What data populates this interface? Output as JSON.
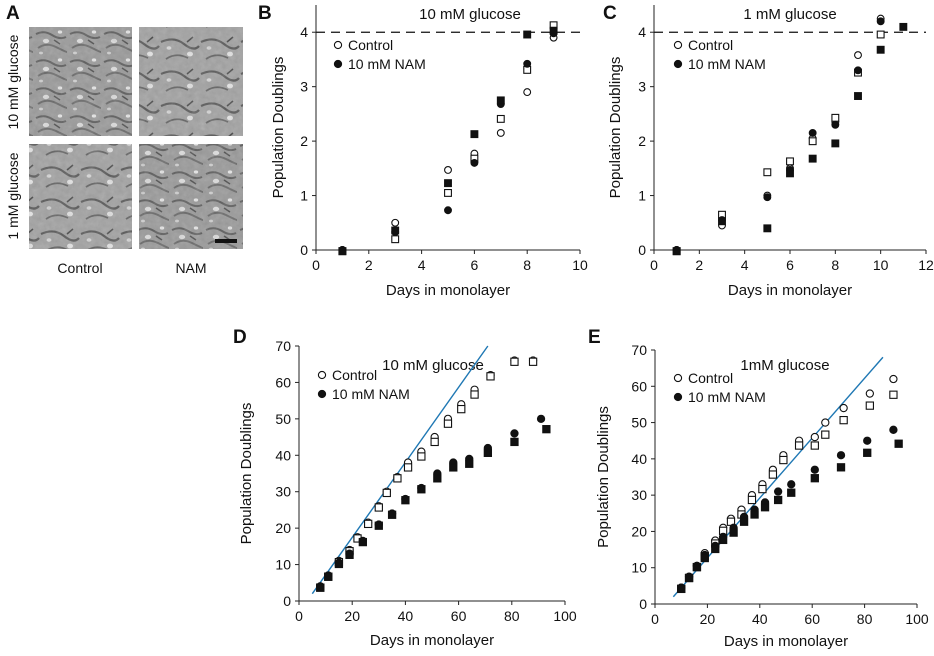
{
  "panel_a": {
    "label": "A",
    "row_labels": [
      "10 mM glucose",
      "1 mM glucose"
    ],
    "col_labels": [
      "Control",
      "NAM"
    ]
  },
  "chart_data": [
    {
      "id": "B",
      "label": "B",
      "type": "scatter",
      "title": "10 mM glucose",
      "xlabel": "Days in monolayer",
      "ylabel": "Population Doublings",
      "xlim": [
        0,
        10
      ],
      "ylim": [
        0,
        4.5
      ],
      "xticks": [
        "0",
        "2",
        "4",
        "6",
        "8",
        "10"
      ],
      "xtick_values": [
        0,
        2,
        4,
        6,
        8,
        10
      ],
      "yticks": [
        "0",
        "1",
        "2",
        "3",
        "4"
      ],
      "ytick_values": [
        0,
        1,
        2,
        3,
        4
      ],
      "reference_line": {
        "y": 4,
        "style": "dashed"
      },
      "legend": [
        "Control",
        "10 mM NAM"
      ],
      "series": [
        {
          "name": "Control",
          "marker": "circle-open",
          "points": [
            [
              1,
              0
            ],
            [
              3,
              0.5
            ],
            [
              5,
              1.47
            ],
            [
              6,
              1.77
            ],
            [
              7,
              2.15
            ],
            [
              8,
              2.9
            ],
            [
              9,
              3.9
            ]
          ]
        },
        {
          "name": "Control (replicate)",
          "marker": "square-open",
          "points": [
            [
              1,
              0
            ],
            [
              3,
              0.22
            ],
            [
              5,
              1.07
            ],
            [
              6,
              1.7
            ],
            [
              7,
              2.43
            ],
            [
              8,
              3.33
            ],
            [
              9,
              4.15
            ]
          ]
        },
        {
          "name": "10 mM NAM",
          "marker": "circle-filled",
          "points": [
            [
              1,
              0
            ],
            [
              3,
              0.33
            ],
            [
              5,
              0.73
            ],
            [
              6,
              1.6
            ],
            [
              7,
              2.68
            ],
            [
              8,
              3.42
            ],
            [
              9,
              3.98
            ]
          ]
        },
        {
          "name": "10 mM NAM (replicate)",
          "marker": "square-filled",
          "points": [
            [
              1,
              0
            ],
            [
              3,
              0.38
            ],
            [
              5,
              1.25
            ],
            [
              6,
              2.15
            ],
            [
              7,
              2.77
            ],
            [
              8,
              3.98
            ],
            [
              9,
              4.05
            ]
          ]
        }
      ]
    },
    {
      "id": "C",
      "label": "C",
      "type": "scatter",
      "title": "1 mM glucose",
      "xlabel": "Days in monolayer",
      "ylabel": "Population Doublings",
      "xlim": [
        0,
        12
      ],
      "ylim": [
        0,
        4.5
      ],
      "xticks": [
        "0",
        "2",
        "4",
        "6",
        "8",
        "10",
        "12"
      ],
      "xtick_values": [
        0,
        2,
        4,
        6,
        8,
        10,
        12
      ],
      "yticks": [
        "0",
        "1",
        "2",
        "3",
        "4"
      ],
      "ytick_values": [
        0,
        1,
        2,
        3,
        4
      ],
      "reference_line": {
        "y": 4,
        "style": "dashed"
      },
      "legend": [
        "Control",
        "10 mM NAM"
      ],
      "series": [
        {
          "name": "Control",
          "marker": "circle-open",
          "points": [
            [
              1,
              0
            ],
            [
              3,
              0.45
            ],
            [
              5,
              1.0
            ],
            [
              6,
              1.5
            ],
            [
              7,
              2.05
            ],
            [
              8,
              2.35
            ],
            [
              9,
              3.58
            ],
            [
              10,
              4.25
            ]
          ]
        },
        {
          "name": "Control (replicate)",
          "marker": "square-open",
          "points": [
            [
              1,
              0
            ],
            [
              3,
              0.67
            ],
            [
              5,
              1.45
            ],
            [
              6,
              1.65
            ],
            [
              7,
              2.02
            ],
            [
              8,
              2.45
            ],
            [
              9,
              3.28
            ],
            [
              10,
              3.98
            ]
          ]
        },
        {
          "name": "10 mM NAM",
          "marker": "circle-filled",
          "points": [
            [
              1,
              0
            ],
            [
              3,
              0.55
            ],
            [
              5,
              0.97
            ],
            [
              6,
              1.47
            ],
            [
              7,
              2.15
            ],
            [
              8,
              2.3
            ],
            [
              9,
              3.3
            ],
            [
              10,
              4.2
            ]
          ]
        },
        {
          "name": "10 mM NAM (replicate)",
          "marker": "square-filled",
          "points": [
            [
              1,
              0
            ],
            [
              3,
              0.55
            ],
            [
              5,
              0.42
            ],
            [
              6,
              1.43
            ],
            [
              7,
              1.7
            ],
            [
              8,
              1.98
            ],
            [
              9,
              2.85
            ],
            [
              10,
              3.7
            ],
            [
              11,
              4.12
            ]
          ]
        }
      ]
    },
    {
      "id": "D",
      "label": "D",
      "type": "scatter",
      "title": "10 mM glucose",
      "xlabel": "Days in monolayer",
      "ylabel": "Population Doublings",
      "xlim": [
        0,
        100
      ],
      "ylim": [
        0,
        70
      ],
      "xticks": [
        "0",
        "20",
        "40",
        "60",
        "80",
        "100"
      ],
      "xtick_values": [
        0,
        20,
        40,
        60,
        80,
        100
      ],
      "yticks": [
        "0",
        "10",
        "20",
        "30",
        "40",
        "50",
        "60",
        "70"
      ],
      "ytick_values": [
        0,
        10,
        20,
        30,
        40,
        50,
        60,
        70
      ],
      "trend_line": {
        "from": [
          5,
          2
        ],
        "to": [
          71,
          70
        ],
        "color": "#1f78b4"
      },
      "legend": [
        "Control",
        "10 mM NAM"
      ],
      "series": [
        {
          "name": "Control",
          "marker": "circle-open",
          "points": [
            [
              8,
              4
            ],
            [
              11,
              7
            ],
            [
              15,
              11
            ],
            [
              19,
              14
            ],
            [
              22,
              17.5
            ],
            [
              26,
              21.5
            ],
            [
              30,
              26
            ],
            [
              33,
              30
            ],
            [
              37,
              34
            ],
            [
              41,
              38
            ],
            [
              46,
              41
            ],
            [
              51,
              45
            ],
            [
              56,
              50
            ],
            [
              61,
              54
            ],
            [
              66,
              58
            ],
            [
              72,
              62
            ],
            [
              81,
              66
            ],
            [
              88,
              66
            ]
          ]
        },
        {
          "name": "Control (replicate)",
          "marker": "square-open",
          "points": [
            [
              8,
              4
            ],
            [
              11,
              7
            ],
            [
              15,
              11
            ],
            [
              19,
              14
            ],
            [
              22,
              17.5
            ],
            [
              26,
              21.5
            ],
            [
              30,
              26
            ],
            [
              33,
              30
            ],
            [
              37,
              34
            ],
            [
              41,
              37
            ],
            [
              46,
              40
            ],
            [
              51,
              44
            ],
            [
              56,
              49
            ],
            [
              61,
              53
            ],
            [
              66,
              57
            ],
            [
              72,
              62
            ],
            [
              81,
              66
            ],
            [
              88,
              66
            ]
          ]
        },
        {
          "name": "10 mM NAM",
          "marker": "circle-filled",
          "points": [
            [
              8,
              4
            ],
            [
              11,
              7
            ],
            [
              15,
              10.5
            ],
            [
              19,
              13
            ],
            [
              24,
              16.5
            ],
            [
              30,
              21
            ],
            [
              35,
              24
            ],
            [
              40,
              28
            ],
            [
              46,
              31
            ],
            [
              52,
              35
            ],
            [
              58,
              38
            ],
            [
              64,
              39
            ],
            [
              71,
              42
            ],
            [
              81,
              46
            ],
            [
              91,
              50
            ]
          ]
        },
        {
          "name": "10 mM NAM (replicate)",
          "marker": "square-filled",
          "points": [
            [
              8,
              4
            ],
            [
              11,
              7
            ],
            [
              15,
              10.5
            ],
            [
              19,
              13
            ],
            [
              24,
              16.5
            ],
            [
              30,
              21
            ],
            [
              35,
              24
            ],
            [
              40,
              28
            ],
            [
              46,
              31
            ],
            [
              52,
              34
            ],
            [
              58,
              37
            ],
            [
              64,
              38
            ],
            [
              71,
              41
            ],
            [
              81,
              44
            ],
            [
              93,
              47.5
            ]
          ]
        }
      ]
    },
    {
      "id": "E",
      "label": "E",
      "type": "scatter",
      "title": "1mM glucose",
      "xlabel": "Days in monolayer",
      "ylabel": "Population Doublings",
      "xlim": [
        0,
        100
      ],
      "ylim": [
        0,
        70
      ],
      "xticks": [
        "0",
        "20",
        "40",
        "60",
        "80",
        "100"
      ],
      "xtick_values": [
        0,
        20,
        40,
        60,
        80,
        100
      ],
      "yticks": [
        "0",
        "10",
        "20",
        "30",
        "40",
        "50",
        "60",
        "70"
      ],
      "ytick_values": [
        0,
        10,
        20,
        30,
        40,
        50,
        60,
        70
      ],
      "trend_line": {
        "from": [
          7,
          2
        ],
        "to": [
          87,
          68
        ],
        "color": "#1f78b4"
      },
      "legend": [
        "Control",
        "10 mM NAM"
      ],
      "series": [
        {
          "name": "Control",
          "marker": "circle-open",
          "points": [
            [
              10,
              4.5
            ],
            [
              13,
              7.5
            ],
            [
              16,
              10.5
            ],
            [
              19,
              14
            ],
            [
              23,
              17.5
            ],
            [
              26,
              21
            ],
            [
              29,
              23.5
            ],
            [
              33,
              26
            ],
            [
              37,
              30
            ],
            [
              41,
              33
            ],
            [
              45,
              37
            ],
            [
              49,
              41
            ],
            [
              55,
              45
            ],
            [
              61,
              46
            ],
            [
              65,
              50
            ],
            [
              72,
              54
            ],
            [
              82,
              58
            ],
            [
              91,
              62
            ]
          ]
        },
        {
          "name": "Control (replicate)",
          "marker": "square-open",
          "points": [
            [
              10,
              4.5
            ],
            [
              13,
              7.5
            ],
            [
              16,
              10.5
            ],
            [
              19,
              13.5
            ],
            [
              23,
              17
            ],
            [
              26,
              20.5
            ],
            [
              29,
              23
            ],
            [
              33,
              25
            ],
            [
              37,
              29
            ],
            [
              41,
              32
            ],
            [
              45,
              36
            ],
            [
              49,
              40
            ],
            [
              55,
              44
            ],
            [
              61,
              44
            ],
            [
              65,
              47
            ],
            [
              72,
              51
            ],
            [
              82,
              55
            ],
            [
              91,
              58
            ]
          ]
        },
        {
          "name": "10 mM NAM",
          "marker": "circle-filled",
          "points": [
            [
              10,
              4.5
            ],
            [
              13,
              7.5
            ],
            [
              16,
              10.5
            ],
            [
              19,
              13.5
            ],
            [
              23,
              16
            ],
            [
              26,
              18.5
            ],
            [
              30,
              21
            ],
            [
              34,
              24
            ],
            [
              38,
              26
            ],
            [
              42,
              28
            ],
            [
              47,
              31
            ],
            [
              52,
              33
            ],
            [
              61,
              37
            ],
            [
              71,
              41
            ],
            [
              81,
              45
            ],
            [
              91,
              48
            ]
          ]
        },
        {
          "name": "10 mM NAM (replicate)",
          "marker": "square-filled",
          "points": [
            [
              10,
              4.5
            ],
            [
              13,
              7.5
            ],
            [
              16,
              10.5
            ],
            [
              19,
              13
            ],
            [
              23,
              15.5
            ],
            [
              26,
              18
            ],
            [
              30,
              20
            ],
            [
              34,
              23
            ],
            [
              38,
              25
            ],
            [
              42,
              27
            ],
            [
              47,
              29
            ],
            [
              52,
              31
            ],
            [
              61,
              35
            ],
            [
              71,
              38
            ],
            [
              81,
              42
            ],
            [
              93,
              44.5
            ]
          ]
        }
      ]
    }
  ]
}
